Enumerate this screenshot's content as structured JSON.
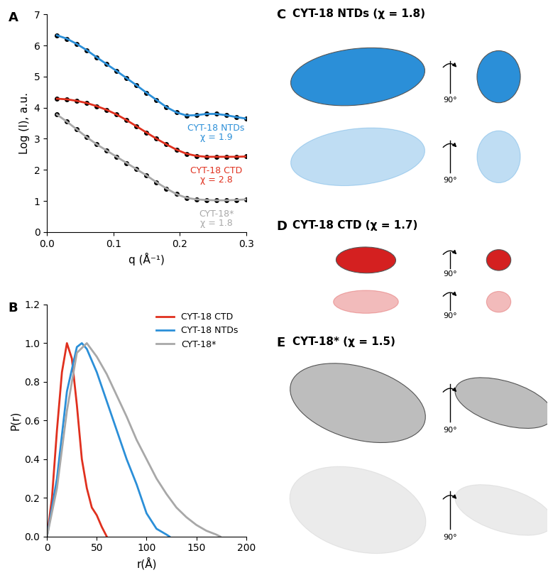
{
  "chart_data": [
    {
      "panel": "A",
      "type": "line",
      "x_label": "q (Å⁻¹)",
      "y_label": "Log (I), a.u.",
      "xlim": [
        0,
        0.3
      ],
      "ylim": [
        0,
        7
      ],
      "xticks": [
        {
          "value": 0,
          "label": "0.0"
        },
        0.1,
        0.2,
        0.3
      ],
      "yticks": [
        0,
        1,
        2,
        3,
        4,
        5,
        6,
        7
      ],
      "marker": "o",
      "x": [
        0.015,
        0.03,
        0.045,
        0.06,
        0.075,
        0.09,
        0.105,
        0.12,
        0.135,
        0.15,
        0.165,
        0.18,
        0.195,
        0.21,
        0.225,
        0.24,
        0.255,
        0.27,
        0.285,
        0.3
      ],
      "series": [
        {
          "name": "CYT-18 NTDs",
          "annotation": "χ = 1.9",
          "color": "#2b8fd8",
          "values": [
            6.33,
            6.22,
            6.05,
            5.85,
            5.62,
            5.4,
            5.18,
            4.95,
            4.72,
            4.48,
            4.25,
            4.02,
            3.85,
            3.75,
            3.76,
            3.8,
            3.8,
            3.76,
            3.7,
            3.65
          ]
        },
        {
          "name": "CYT-18 CTD",
          "annotation": "χ = 2.8",
          "color": "#e0301e",
          "values": [
            4.29,
            4.27,
            4.22,
            4.15,
            4.05,
            3.93,
            3.78,
            3.6,
            3.4,
            3.2,
            3.0,
            2.82,
            2.65,
            2.52,
            2.45,
            2.42,
            2.42,
            2.42,
            2.42,
            2.43
          ]
        },
        {
          "name": "CYT-18*",
          "annotation": "χ = 1.8",
          "color": "#a8a8a8",
          "values": [
            3.78,
            3.55,
            3.3,
            3.05,
            2.82,
            2.62,
            2.42,
            2.22,
            2.02,
            1.82,
            1.6,
            1.4,
            1.22,
            1.1,
            1.05,
            1.03,
            1.02,
            1.02,
            1.03,
            1.05
          ]
        }
      ]
    },
    {
      "panel": "B",
      "type": "line",
      "x_label": "r(Å)",
      "y_label": "P(r)",
      "xlim": [
        0,
        200
      ],
      "ylim": [
        0,
        1.2
      ],
      "xticks": [
        0,
        50,
        100,
        150,
        200
      ],
      "yticks": [
        {
          "value": 0,
          "label": "0.0"
        },
        0.2,
        0.4,
        0.6,
        0.8,
        {
          "value": 1,
          "label": "1.0"
        },
        1.2
      ],
      "legend": "upper right",
      "series": [
        {
          "name": "CYT-18 CTD",
          "color": "#e0301e",
          "x": [
            0,
            5,
            10,
            15,
            20,
            25,
            30,
            35,
            40,
            45,
            50,
            55,
            60
          ],
          "values": [
            0,
            0.2,
            0.55,
            0.85,
            1.0,
            0.92,
            0.68,
            0.4,
            0.25,
            0.15,
            0.11,
            0.05,
            0
          ]
        },
        {
          "name": "CYT-18 NTDs",
          "color": "#2b8fd8",
          "x": [
            0,
            10,
            20,
            30,
            35,
            40,
            50,
            60,
            70,
            80,
            90,
            100,
            110,
            120,
            123
          ],
          "values": [
            0,
            0.3,
            0.75,
            0.98,
            1.0,
            0.97,
            0.85,
            0.7,
            0.55,
            0.4,
            0.27,
            0.12,
            0.04,
            0.01,
            0
          ]
        },
        {
          "name": "CYT-18*",
          "color": "#a8a8a8",
          "x": [
            0,
            10,
            20,
            30,
            40,
            50,
            60,
            70,
            80,
            90,
            100,
            110,
            120,
            130,
            140,
            150,
            160,
            170,
            174
          ],
          "values": [
            0,
            0.25,
            0.65,
            0.95,
            1.0,
            0.93,
            0.84,
            0.73,
            0.62,
            0.5,
            0.4,
            0.3,
            0.22,
            0.15,
            0.1,
            0.06,
            0.03,
            0.01,
            0
          ]
        }
      ]
    }
  ],
  "structure_panels": [
    {
      "panel": "C",
      "title": "CYT-18 NTDs (χ = 1.8)",
      "rotation_label": "90°",
      "color": "#2b8fd8"
    },
    {
      "panel": "D",
      "title": "CYT-18 CTD (χ = 1.7)",
      "rotation_label": "90°",
      "color": "#d42020"
    },
    {
      "panel": "E",
      "title": "CYT-18* (χ = 1.5)",
      "rotation_label": "90°",
      "color": "#bdbdbd"
    }
  ]
}
